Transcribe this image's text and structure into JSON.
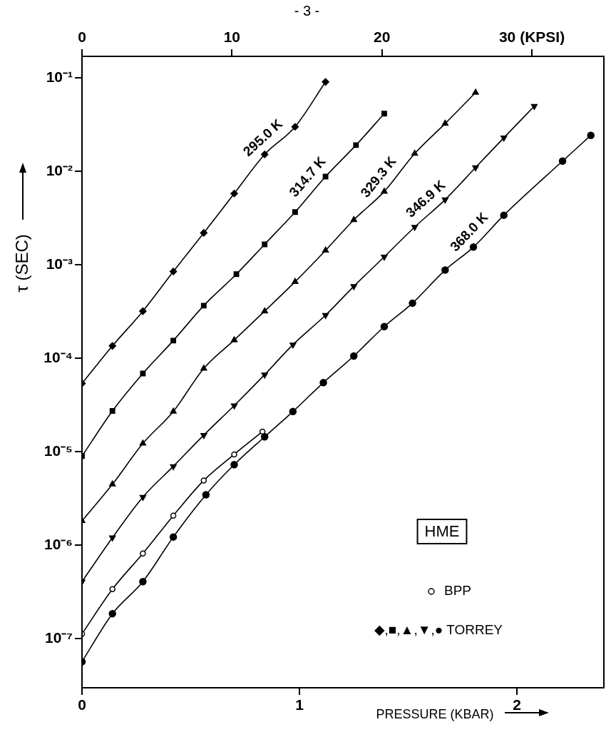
{
  "chart_data": {
    "type": "line",
    "xlabel": "PRESSURE (KBAR)",
    "ylabel": "τ (SEC)",
    "log": "y",
    "legend": "bottom right",
    "marker": "circle",
    "line_style": "solid",
    "xlim": [
      0,
      2.4
    ],
    "xticks": [
      0,
      1,
      2
    ],
    "x2lim": [
      0,
      34.8
    ],
    "x2ticks": [
      0,
      10,
      20,
      {
        "value": 30,
        "label": "30 (KPSI)"
      }
    ],
    "ylim": [
      3e-08,
      0.17
    ],
    "yticks": [
      {
        "value": 0.1,
        "label": "10⁻¹"
      },
      {
        "value": 0.01,
        "label": "10⁻²"
      },
      {
        "value": 0.001,
        "label": "10⁻³"
      },
      {
        "value": 0.0001,
        "label": "10⁻⁴"
      },
      {
        "value": 1e-05,
        "label": "10⁻⁵"
      },
      {
        "value": 1e-06,
        "label": "10⁻⁶"
      },
      {
        "value": 1e-07,
        "label": "10⁻⁷"
      }
    ],
    "annotations": [
      "HME",
      "◆,■,▲,▼,● TORREY",
      "- 3 -"
    ],
    "series": [
      {
        "name": "295.0 K",
        "color": "#000000",
        "marker": "diamond",
        "x": [
          0,
          0.14,
          0.28,
          0.42,
          0.56,
          0.7,
          0.84,
          0.98,
          1.12
        ],
        "values": [
          5.4e-05,
          0.000136,
          0.00032,
          0.00085,
          0.0022,
          0.0058,
          0.0152,
          0.03,
          0.0906
        ]
      },
      {
        "name": "314.7 K",
        "color": "#000000",
        "marker": "square",
        "x": [
          0,
          0.14,
          0.28,
          0.42,
          0.56,
          0.71,
          0.84,
          0.98,
          1.12,
          1.26,
          1.39
        ],
        "values": [
          9e-06,
          2.74e-05,
          6.9e-05,
          0.000155,
          0.000367,
          0.000796,
          0.00166,
          0.00367,
          0.0088,
          0.0191,
          0.0415
        ]
      },
      {
        "name": "329.3 K",
        "color": "#000000",
        "marker": "triangle",
        "x": [
          0,
          0.14,
          0.28,
          0.42,
          0.56,
          0.7,
          0.84,
          0.98,
          1.12,
          1.25,
          1.39,
          1.53,
          1.67,
          1.81
        ],
        "values": [
          1.83e-06,
          4.5e-06,
          1.23e-05,
          2.71e-05,
          7.8e-05,
          0.000157,
          0.00032,
          0.00066,
          0.00143,
          0.00303,
          0.0061,
          0.0155,
          0.0325,
          0.0697
        ]
      },
      {
        "name": "346.9 K",
        "color": "#000000",
        "marker": "triangle-down",
        "x": [
          0,
          0.14,
          0.28,
          0.42,
          0.56,
          0.7,
          0.84,
          0.97,
          1.12,
          1.25,
          1.39,
          1.53,
          1.67,
          1.81,
          1.94,
          2.08
        ],
        "values": [
          4.1e-07,
          1.21e-06,
          3.29e-06,
          7e-06,
          1.51e-05,
          3.13e-05,
          6.7e-05,
          0.00014,
          0.00029,
          0.00059,
          0.00122,
          0.00254,
          0.00499,
          0.011,
          0.0229,
          0.0499
        ]
      },
      {
        "name": "368.0 K",
        "color": "#000000",
        "x": [
          0,
          0.14,
          0.28,
          0.42,
          0.57,
          0.7,
          0.84,
          0.97,
          1.11,
          1.25,
          1.39,
          1.52,
          1.67,
          1.8,
          1.94,
          2.21,
          2.34
        ],
        "values": [
          5.7e-08,
          1.86e-07,
          4.1e-07,
          1.23e-06,
          3.48e-06,
          7.3e-06,
          1.45e-05,
          2.7e-05,
          5.5e-05,
          0.000106,
          0.000219,
          0.00039,
          0.00088,
          0.00155,
          0.0034,
          0.0129,
          0.0243
        ]
      },
      {
        "name": "BPP",
        "color": "#000000",
        "x": [
          0,
          0.14,
          0.28,
          0.42,
          0.56,
          0.7,
          0.83
        ],
        "values": [
          1.13e-07,
          3.4e-07,
          8.2e-07,
          2.08e-06,
          4.95e-06,
          9.4e-06,
          1.65e-05
        ]
      }
    ]
  }
}
